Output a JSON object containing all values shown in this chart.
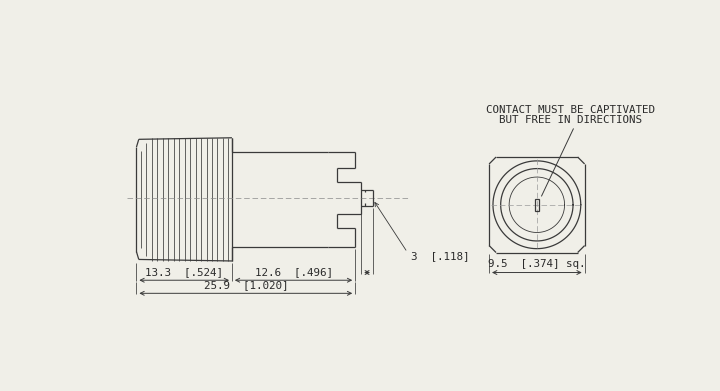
{
  "bg_color": "#f0efe8",
  "line_color": "#3a3a3a",
  "dim_color": "#3a3a3a",
  "text_color": "#2a2a2a",
  "title_line1": "CONTACT MUST BE CAPTIVATED",
  "title_line2": "BUT FREE IN DIRECTIONS",
  "dim1_label": "13.3  [.524]",
  "dim2_label": "12.6  [.496]",
  "dim3_label": "25.9  [1.020]",
  "dim4_label": "3  [.118]",
  "dim5_label": "9.5  [.374] sq.",
  "lw": 0.9
}
